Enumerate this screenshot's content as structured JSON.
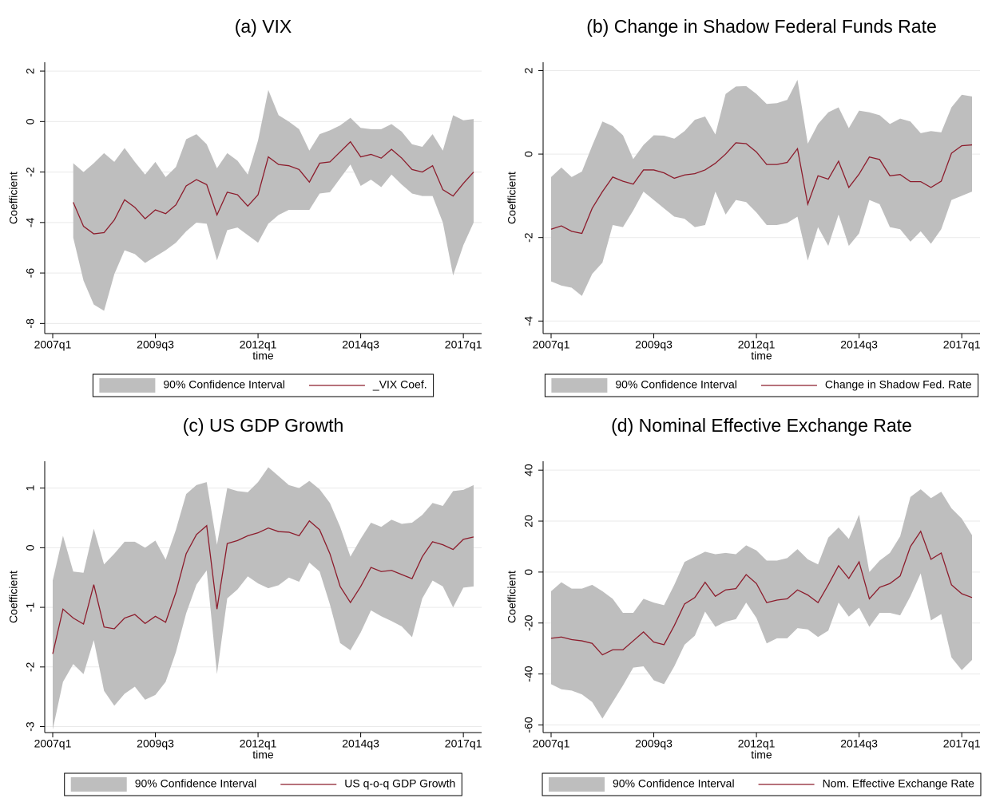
{
  "chart_data": [
    {
      "type": "line",
      "title": "(a) VIX",
      "x_label": "time",
      "y_label": "Coefficient",
      "x": [
        "2007q1",
        "2007q2",
        "2007q3",
        "2007q4",
        "2008q1",
        "2008q2",
        "2008q3",
        "2008q4",
        "2009q1",
        "2009q2",
        "2009q3",
        "2009q4",
        "2010q1",
        "2010q2",
        "2010q3",
        "2010q4",
        "2011q1",
        "2011q2",
        "2011q3",
        "2011q4",
        "2012q1",
        "2012q2",
        "2012q3",
        "2012q4",
        "2013q1",
        "2013q2",
        "2013q3",
        "2013q4",
        "2014q1",
        "2014q2",
        "2014q3",
        "2014q4",
        "2015q1",
        "2015q2",
        "2015q3",
        "2015q4",
        "2016q1",
        "2016q2",
        "2016q3",
        "2016q4",
        "2017q1",
        "2017q2"
      ],
      "xticks": [
        "2007q1",
        "2009q3",
        "2012q1",
        "2014q3",
        "2017q1"
      ],
      "ylim": [
        -8.4,
        2.35
      ],
      "yticks": [
        -8,
        -6,
        -4,
        -2,
        0,
        2
      ],
      "grid": true,
      "band": {
        "name": "90% Confidence Interval",
        "color": "#bebebe",
        "upper": [
          null,
          null,
          -1.65,
          -2.0,
          -1.65,
          -1.25,
          -1.6,
          -1.05,
          -1.6,
          -2.1,
          -1.6,
          -2.2,
          -1.8,
          -0.7,
          -0.5,
          -0.9,
          -1.85,
          -1.25,
          -1.55,
          -2.1,
          -0.75,
          1.25,
          0.25,
          0.0,
          -0.3,
          -1.15,
          -0.5,
          -0.35,
          -0.15,
          0.15,
          -0.25,
          -0.3,
          -0.3,
          -0.1,
          -0.4,
          -0.9,
          -1.0,
          -0.5,
          -1.15,
          0.25,
          0.05,
          0.1
        ],
        "lower": [
          null,
          null,
          -4.6,
          -6.3,
          -7.25,
          -7.5,
          -6.05,
          -5.1,
          -5.25,
          -5.6,
          -5.35,
          -5.1,
          -4.8,
          -4.35,
          -4.0,
          -4.05,
          -5.5,
          -4.3,
          -4.2,
          -4.5,
          -4.8,
          -4.05,
          -3.7,
          -3.5,
          -3.5,
          -3.5,
          -2.85,
          -2.8,
          -2.25,
          -1.7,
          -2.55,
          -2.3,
          -2.6,
          -2.1,
          -2.5,
          -2.85,
          -2.95,
          -2.95,
          -4.0,
          -6.1,
          -4.9,
          -4.0
        ]
      },
      "series": [
        {
          "name": "_VIX Coef.",
          "color": "#8c1c2c",
          "values": [
            null,
            null,
            -3.2,
            -4.15,
            -4.45,
            -4.4,
            -3.9,
            -3.1,
            -3.4,
            -3.85,
            -3.5,
            -3.65,
            -3.3,
            -2.55,
            -2.3,
            -2.5,
            -3.7,
            -2.8,
            -2.9,
            -3.35,
            -2.9,
            -1.4,
            -1.7,
            -1.75,
            -1.9,
            -2.4,
            -1.65,
            -1.6,
            -1.2,
            -0.8,
            -1.4,
            -1.3,
            -1.45,
            -1.1,
            -1.45,
            -1.9,
            -2.0,
            -1.75,
            -2.7,
            -2.95,
            -2.45,
            -2.0
          ]
        }
      ]
    },
    {
      "type": "line",
      "title": "(b) Change in Shadow Federal Funds Rate",
      "x_label": "time",
      "y_label": "Coefficient",
      "x": [
        "2007q1",
        "2007q2",
        "2007q3",
        "2007q4",
        "2008q1",
        "2008q2",
        "2008q3",
        "2008q4",
        "2009q1",
        "2009q2",
        "2009q3",
        "2009q4",
        "2010q1",
        "2010q2",
        "2010q3",
        "2010q4",
        "2011q1",
        "2011q2",
        "2011q3",
        "2011q4",
        "2012q1",
        "2012q2",
        "2012q3",
        "2012q4",
        "2013q1",
        "2013q2",
        "2013q3",
        "2013q4",
        "2014q1",
        "2014q2",
        "2014q3",
        "2014q4",
        "2015q1",
        "2015q2",
        "2015q3",
        "2015q4",
        "2016q1",
        "2016q2",
        "2016q3",
        "2016q4",
        "2017q1",
        "2017q2"
      ],
      "xticks": [
        "2007q1",
        "2009q3",
        "2012q1",
        "2014q3",
        "2017q1"
      ],
      "ylim": [
        -4.3,
        2.2
      ],
      "yticks": [
        -4,
        -2,
        0,
        2
      ],
      "grid": true,
      "band": {
        "name": "90% Confidence Interval",
        "color": "#bebebe",
        "upper": [
          -0.55,
          -0.32,
          -0.55,
          -0.42,
          0.2,
          0.78,
          0.67,
          0.45,
          -0.12,
          0.22,
          0.45,
          0.44,
          0.37,
          0.55,
          0.82,
          0.9,
          0.47,
          1.44,
          1.62,
          1.63,
          1.44,
          1.2,
          1.22,
          1.3,
          1.78,
          0.25,
          0.72,
          1.0,
          1.12,
          0.62,
          1.04,
          1.0,
          0.93,
          0.72,
          0.85,
          0.78,
          0.5,
          0.55,
          0.52,
          1.12,
          1.42,
          1.38
        ],
        "lower": [
          -3.05,
          -3.15,
          -3.2,
          -3.4,
          -2.87,
          -2.6,
          -1.7,
          -1.75,
          -1.35,
          -0.9,
          -1.1,
          -1.3,
          -1.5,
          -1.55,
          -1.75,
          -1.7,
          -0.9,
          -1.45,
          -1.1,
          -1.15,
          -1.4,
          -1.7,
          -1.7,
          -1.65,
          -1.5,
          -2.55,
          -1.75,
          -2.2,
          -1.45,
          -2.2,
          -1.9,
          -1.1,
          -1.2,
          -1.75,
          -1.8,
          -2.1,
          -1.85,
          -2.15,
          -1.8,
          -1.1,
          -1.0,
          -0.9
        ]
      },
      "series": [
        {
          "name": "Change in Shadow Fed. Rate",
          "color": "#8c1c2c",
          "values": [
            -1.8,
            -1.72,
            -1.85,
            -1.9,
            -1.3,
            -0.9,
            -0.55,
            -0.65,
            -0.72,
            -0.38,
            -0.38,
            -0.45,
            -0.58,
            -0.5,
            -0.47,
            -0.38,
            -0.22,
            0.0,
            0.27,
            0.25,
            0.05,
            -0.25,
            -0.25,
            -0.2,
            0.13,
            -1.2,
            -0.52,
            -0.6,
            -0.17,
            -0.8,
            -0.48,
            -0.07,
            -0.13,
            -0.52,
            -0.49,
            -0.66,
            -0.66,
            -0.8,
            -0.65,
            0.02,
            0.2,
            0.22
          ]
        }
      ]
    },
    {
      "type": "line",
      "title": "(c) US GDP Growth",
      "x_label": "time",
      "y_label": "Coefficient",
      "x": [
        "2007q1",
        "2007q2",
        "2007q3",
        "2007q4",
        "2008q1",
        "2008q2",
        "2008q3",
        "2008q4",
        "2009q1",
        "2009q2",
        "2009q3",
        "2009q4",
        "2010q1",
        "2010q2",
        "2010q3",
        "2010q4",
        "2011q1",
        "2011q2",
        "2011q3",
        "2011q4",
        "2012q1",
        "2012q2",
        "2012q3",
        "2012q4",
        "2013q1",
        "2013q2",
        "2013q3",
        "2013q4",
        "2014q1",
        "2014q2",
        "2014q3",
        "2014q4",
        "2015q1",
        "2015q2",
        "2015q3",
        "2015q4",
        "2016q1",
        "2016q2",
        "2016q3",
        "2016q4",
        "2017q1",
        "2017q2"
      ],
      "xticks": [
        "2007q1",
        "2009q3",
        "2012q1",
        "2014q3",
        "2017q1"
      ],
      "ylim": [
        -3.1,
        1.45
      ],
      "yticks": [
        -3,
        -2,
        -1,
        0,
        1
      ],
      "grid": true,
      "band": {
        "name": "90% Confidence Interval",
        "color": "#bebebe",
        "upper": [
          -0.55,
          0.2,
          -0.4,
          -0.42,
          0.32,
          -0.28,
          -0.1,
          0.1,
          0.1,
          0.0,
          0.12,
          -0.2,
          0.3,
          0.9,
          1.05,
          1.1,
          0.05,
          1.0,
          0.95,
          0.93,
          1.1,
          1.35,
          1.2,
          1.05,
          1.0,
          1.12,
          0.98,
          0.75,
          0.35,
          -0.15,
          0.15,
          0.42,
          0.35,
          0.47,
          0.4,
          0.42,
          0.55,
          0.75,
          0.7,
          0.95,
          0.97,
          1.05
        ],
        "lower": [
          -3.05,
          -2.25,
          -1.95,
          -2.12,
          -1.55,
          -2.4,
          -2.65,
          -2.45,
          -2.33,
          -2.55,
          -2.47,
          -2.25,
          -1.75,
          -1.1,
          -0.62,
          -0.38,
          -2.12,
          -0.85,
          -0.7,
          -0.48,
          -0.6,
          -0.68,
          -0.63,
          -0.5,
          -0.57,
          -0.25,
          -0.4,
          -0.95,
          -1.6,
          -1.72,
          -1.42,
          -1.05,
          -1.15,
          -1.23,
          -1.32,
          -1.5,
          -0.85,
          -0.55,
          -0.65,
          -1.0,
          -0.67,
          -0.65
        ]
      },
      "series": [
        {
          "name": "US q-o-q GDP Growth",
          "color": "#8c1c2c",
          "values": [
            -1.78,
            -1.03,
            -1.18,
            -1.28,
            -0.62,
            -1.33,
            -1.36,
            -1.18,
            -1.12,
            -1.27,
            -1.15,
            -1.25,
            -0.75,
            -0.1,
            0.22,
            0.37,
            -1.03,
            0.07,
            0.12,
            0.2,
            0.25,
            0.33,
            0.27,
            0.26,
            0.2,
            0.45,
            0.3,
            -0.1,
            -0.65,
            -0.92,
            -0.65,
            -0.33,
            -0.4,
            -0.38,
            -0.45,
            -0.52,
            -0.15,
            0.1,
            0.05,
            -0.03,
            0.14,
            0.18
          ]
        }
      ]
    },
    {
      "type": "line",
      "title": "(d) Nominal Effective Exchange Rate",
      "x_label": "time",
      "y_label": "Coefficient",
      "x": [
        "2007q1",
        "2007q2",
        "2007q3",
        "2007q4",
        "2008q1",
        "2008q2",
        "2008q3",
        "2008q4",
        "2009q1",
        "2009q2",
        "2009q3",
        "2009q4",
        "2010q1",
        "2010q2",
        "2010q3",
        "2010q4",
        "2011q1",
        "2011q2",
        "2011q3",
        "2011q4",
        "2012q1",
        "2012q2",
        "2012q3",
        "2012q4",
        "2013q1",
        "2013q2",
        "2013q3",
        "2013q4",
        "2014q1",
        "2014q2",
        "2014q3",
        "2014q4",
        "2015q1",
        "2015q2",
        "2015q3",
        "2015q4",
        "2016q1",
        "2016q2",
        "2016q3",
        "2016q4",
        "2017q1",
        "2017q2"
      ],
      "xticks": [
        "2007q1",
        "2009q3",
        "2012q1",
        "2014q3",
        "2017q1"
      ],
      "ylim": [
        -63,
        43.5
      ],
      "yticks": [
        -60,
        -40,
        -20,
        0,
        20,
        40
      ],
      "grid": true,
      "band": {
        "name": "90% Confidence Interval",
        "color": "#bebebe",
        "upper": [
          -7.5,
          -4,
          -6.5,
          -6.5,
          -5,
          -7.5,
          -10.5,
          -16,
          -16,
          -10.5,
          -12,
          -13,
          -5,
          4,
          6,
          8,
          7,
          7.5,
          7,
          10.5,
          8.5,
          4.5,
          4.5,
          5.5,
          9,
          5,
          3,
          13.5,
          17.5,
          13,
          22.5,
          0,
          4.5,
          7.5,
          14,
          29.5,
          32.5,
          29,
          31.5,
          25,
          21,
          14.5
        ],
        "lower": [
          -44,
          -46,
          -46.5,
          -48,
          -51,
          -57.5,
          -51,
          -44.5,
          -37.5,
          -37,
          -42.5,
          -44,
          -37,
          -28.5,
          -25,
          -15.5,
          -21.5,
          -19.5,
          -18.5,
          -12,
          -18,
          -28,
          -26,
          -26,
          -22,
          -22.5,
          -25.5,
          -23,
          -12,
          -17.5,
          -14,
          -21.5,
          -16,
          -16,
          -17,
          -9.5,
          -0.5,
          -19,
          -16.5,
          -33.5,
          -38.5,
          -34.5
        ]
      },
      "series": [
        {
          "name": "Nom. Effective Exchange Rate",
          "color": "#8c1c2c",
          "values": [
            -26,
            -25.5,
            -26.5,
            -27,
            -28,
            -32.5,
            -30.5,
            -30.5,
            -27,
            -23.5,
            -27.5,
            -28.5,
            -21,
            -12.5,
            -10,
            -4,
            -9.5,
            -7,
            -6.5,
            -1,
            -4.5,
            -12,
            -11,
            -10.5,
            -7,
            -9,
            -12,
            -5,
            2.5,
            -2.5,
            4,
            -10.5,
            -6,
            -4.5,
            -1.5,
            10,
            16,
            5,
            7.5,
            -5,
            -8.5,
            -10
          ]
        }
      ]
    }
  ]
}
